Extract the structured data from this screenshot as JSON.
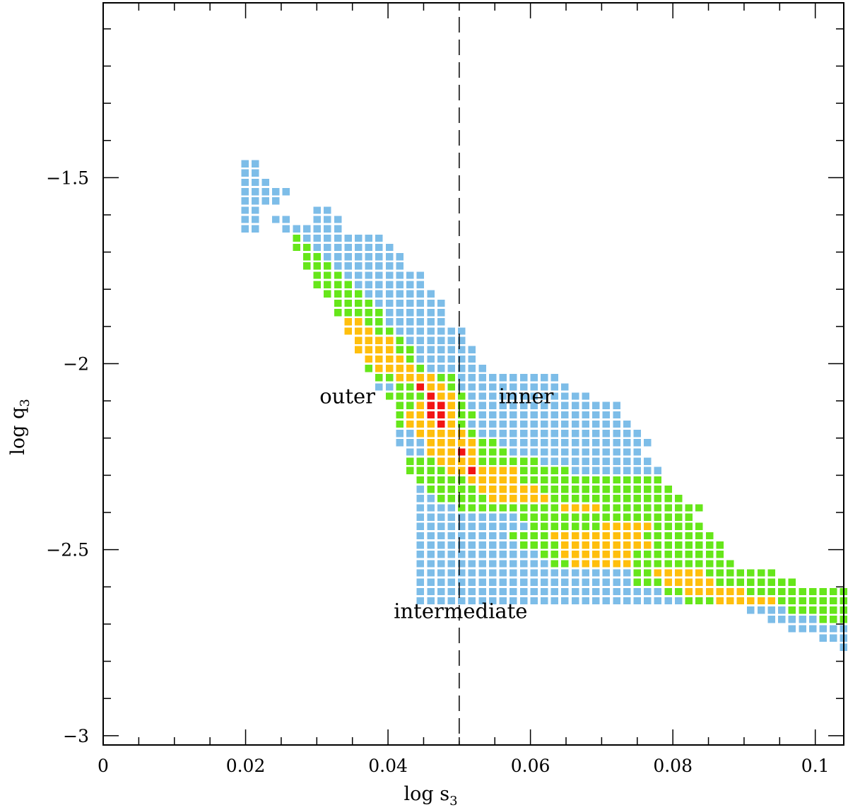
{
  "chart_data": {
    "type": "heatmap",
    "title": "",
    "xlabel": "log s",
    "xlabel_sub": "3",
    "ylabel": "log q",
    "ylabel_sub": "3",
    "xlim": [
      0,
      0.104
    ],
    "ylim": [
      -3.025,
      -1.03
    ],
    "x_ticks": [
      0,
      0.02,
      0.04,
      0.06,
      0.08,
      0.1
    ],
    "x_tick_labels": [
      "0",
      "0.02",
      "0.04",
      "0.06",
      "0.08",
      "0.1"
    ],
    "y_ticks": [
      -3,
      -2.5,
      -2,
      -1.5
    ],
    "y_tick_labels": [
      "−3",
      "−2.5",
      "−2",
      "−1.5"
    ],
    "reference_line": {
      "x": 0.05,
      "style": "dashed"
    },
    "annotations": [
      {
        "text": "outer",
        "x": 0.0343,
        "y": -2.087
      },
      {
        "text": "inner",
        "x": 0.0594,
        "y": -2.087
      },
      {
        "text": "intermediate",
        "x": 0.0502,
        "y": -2.665
      }
    ],
    "grid": {
      "x0": 0.0199,
      "dx": 0.00145,
      "y_top": -1.4625,
      "dy": 0.025
    },
    "levels": [
      {
        "code": "B",
        "color": "#7dbde8"
      },
      {
        "code": "G",
        "color": "#66e61a"
      },
      {
        "code": "Y",
        "color": "#ffbf0d"
      },
      {
        "code": "R",
        "color": "#f21414"
      }
    ],
    "rows": [
      "BB",
      "BB",
      "BBB",
      "BBBBB",
      "BBBB",
      "BB     BB",
      "BB BB  BBB",
      "BB  BBBBBB",
      "     GBBBBBBBB",
      "     GGBBBBBBBB",
      "      GGBBBBBBBB",
      "      GGGBBBBBBB",
      "       GGGBBBBBBBB",
      "       GGGGBBBBBBB",
      "        GGGGBBBBBBB",
      "         GGGGBBBBBBB",
      "         GGGGGBBBBBB",
      "          YYGGBBBBBB",
      "          YYYGGBBBBBBB",
      "           YYYYGBBBBBB",
      "           YYYYGGBBBBBB",
      "            YYYYGBBBBBB",
      "            GYYYYGBBBBBB",
      "             GGYYYYGGBBBBBBBBBB",
      "             BBGGRYYGBBBBBBBBBBB",
      "              GGGGRYYGBBBBBBBBBBBB",
      "               GGYRRYGBBBBBBBBBBBBBBB",
      "               GYYRRYGGBBBBBBBBBBBBBB",
      "               GYYYRYGBBBBBBBBBBBBBBBB",
      "               BBYYYYYGBBBBBBBBBBBBBBBB",
      "               BBBYYYYYGGBBBBBBBBBBBBBBB",
      "                BBYYYRYGGGBBBBBBBBBBBBB",
      "                GGGYYYYGGGGGGBBBBBBBBBBB",
      "                GGGGYYRYYYYGGGGGBBBBBBBBB",
      "                 GGGGGYYYYYGGGGGGGGGGGGGG",
      "                 BGGGGGYYYYYYGGGGGGGGGGGGG",
      "                 BBGGGGGYYYYYYGGGGGGGGGGGGG",
      "                 BBBBGGGGGGGGGGYYYYGGGGGGGGGG",
      "                 BBBBBBBBBBGGGGGGGGGGGGGGGGG",
      "                 BBBBBBBBBBBGGGGGGGYYYYYGGGGG",
      "                 BBBBBBBBBGGGGYYYYYYYYYGGGGGGG",
      "                 BBBBBBBBBBGGGGYYYYYYYYYGGGGGGG",
      "                 BBBBBBBBBBBBGGYYYYYYYGGGGGGGGG",
      "                 BBBBBBBBBBBBBGGYYYYYYGGGGGGGGGG",
      "                 BBBBBBBBBBBBBBBBBBBBBGGYYYYYGGGGGGG",
      "                 BBBBBBBBBBBBBBBBBBBBBGGGYYYYYGGGGGGGG",
      "                 BBBBBBBBBBBBBBBBBBBBBBBBGGYYYYYYGGGGGGGGGGGGGGGGGGGGGGGGGGGGGGGGGGGGG",
      "                 BBBBBBBBBBBBBBBBBBBBBBBBBBGGGYYYYYYGGGGGGGGGGGGGGGGGGGGGGGGGGGGGGGGGG",
      "                                                 BBBBGGGGGGGGGGGGGGGGGGGGGGGGGGGG",
      "                                                   BBBBBGGGGGGGGGGGGGGGGGGGGGGGGG",
      "                                                     BBBBBBBGGGGGGGGGGGGGGGGGGGGG",
      "                                                        BBBBBBBBBBBBBBBBBBBBBB",
      "                                                          BBBBBBBBBBBBBBBBB",
      "                                                            BBBBBBBBBBBBB",
      "                                                              BBBBBBBB"
    ]
  }
}
